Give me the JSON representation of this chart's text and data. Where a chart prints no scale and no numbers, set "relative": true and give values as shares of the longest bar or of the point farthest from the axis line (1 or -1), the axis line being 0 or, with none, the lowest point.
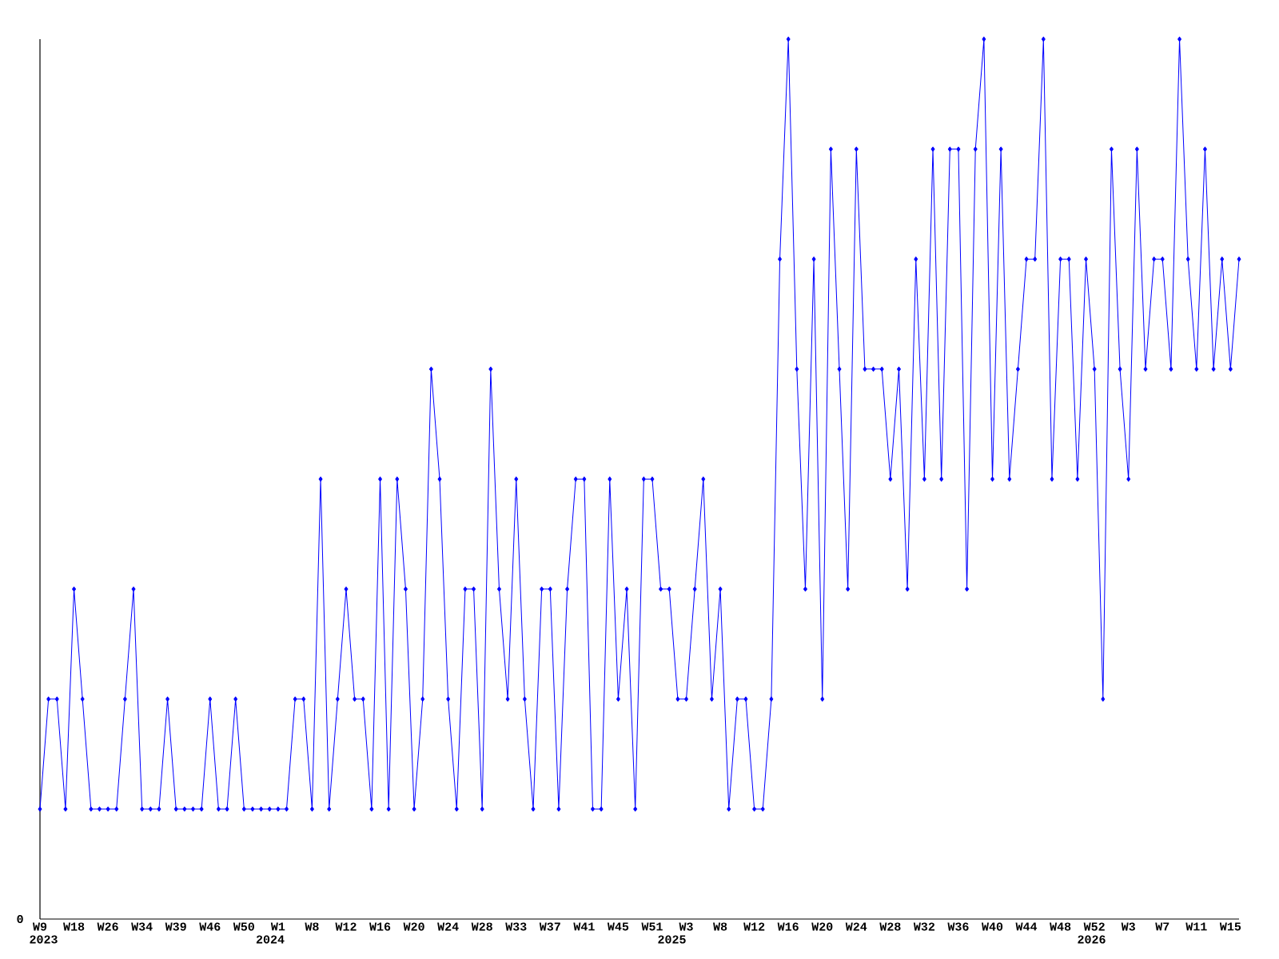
{
  "chart_data": {
    "type": "line",
    "relative": true,
    "marker": "diamond",
    "line_style": "solid",
    "grid": false,
    "categories": [
      "W9",
      null,
      null,
      null,
      "W18",
      null,
      null,
      null,
      "W26",
      null,
      null,
      null,
      "W34",
      null,
      null,
      null,
      "W39",
      null,
      null,
      null,
      "W46",
      null,
      null,
      null,
      "W50",
      null,
      null,
      null,
      "W1",
      null,
      null,
      null,
      "W8",
      null,
      null,
      null,
      "W12",
      null,
      null,
      null,
      "W16",
      null,
      null,
      null,
      "W20",
      null,
      null,
      null,
      "W24",
      null,
      null,
      null,
      "W28",
      null,
      null,
      null,
      "W33",
      null,
      null,
      null,
      "W37",
      null,
      null,
      null,
      "W41",
      null,
      null,
      null,
      "W45",
      null,
      null,
      null,
      "W51",
      null,
      null,
      null,
      "W3",
      null,
      null,
      null,
      "W8",
      null,
      null,
      null,
      "W12",
      null,
      null,
      null,
      "W16",
      null,
      null,
      null,
      "W20",
      null,
      null,
      null,
      "W24",
      null,
      null,
      null,
      "W28",
      null,
      null,
      null,
      "W32",
      null,
      null,
      null,
      "W36",
      null,
      null,
      null,
      "W40",
      null,
      null,
      null,
      "W44",
      null,
      null,
      null,
      "W48",
      null,
      null,
      null,
      "W52",
      null,
      null,
      null,
      "W3",
      null,
      null,
      null,
      "W7",
      null,
      null,
      null,
      "W11",
      null,
      null,
      null,
      "W15",
      null
    ],
    "series": [
      {
        "color": "#0000ff",
        "values": [
          0.125,
          0.25,
          0.25,
          0.125,
          0.375,
          0.25,
          0.125,
          0.125,
          0.125,
          0.125,
          0.25,
          0.375,
          0.125,
          0.125,
          0.125,
          0.25,
          0.125,
          0.125,
          0.125,
          0.125,
          0.25,
          0.125,
          0.125,
          0.25,
          0.125,
          0.125,
          0.125,
          0.125,
          0.125,
          0.125,
          0.25,
          0.25,
          0.125,
          0.5,
          0.125,
          0.25,
          0.375,
          0.25,
          0.25,
          0.125,
          0.5,
          0.125,
          0.5,
          0.375,
          0.125,
          0.25,
          0.625,
          0.5,
          0.25,
          0.125,
          0.375,
          0.375,
          0.125,
          0.625,
          0.375,
          0.25,
          0.5,
          0.25,
          0.125,
          0.375,
          0.375,
          0.125,
          0.375,
          0.5,
          0.5,
          0.125,
          0.125,
          0.5,
          0.25,
          0.375,
          0.125,
          0.5,
          0.5,
          0.375,
          0.375,
          0.25,
          0.25,
          0.375,
          0.5,
          0.25,
          0.375,
          0.125,
          0.25,
          0.25,
          0.125,
          0.125,
          0.25,
          0.75,
          1,
          0.625,
          0.375,
          0.75,
          0.25,
          0.875,
          0.625,
          0.375,
          0.875,
          0.625,
          0.625,
          0.625,
          0.5,
          0.625,
          0.375,
          0.75,
          0.5,
          0.875,
          0.5,
          0.875,
          0.875,
          0.375,
          0.875,
          1,
          0.5,
          0.875,
          0.5,
          0.625,
          0.75,
          0.75,
          1,
          0.5,
          0.75,
          0.75,
          0.5,
          0.75,
          0.625,
          0.25,
          0.875,
          0.625,
          0.5,
          0.875,
          0.625,
          0.75,
          0.75,
          0.625,
          1,
          0.75,
          0.625,
          0.875,
          0.625,
          0.75,
          0.625,
          0.75
        ]
      }
    ],
    "annotations": [
      "0",
      "2023",
      "2024",
      "2025",
      "2026"
    ]
  }
}
